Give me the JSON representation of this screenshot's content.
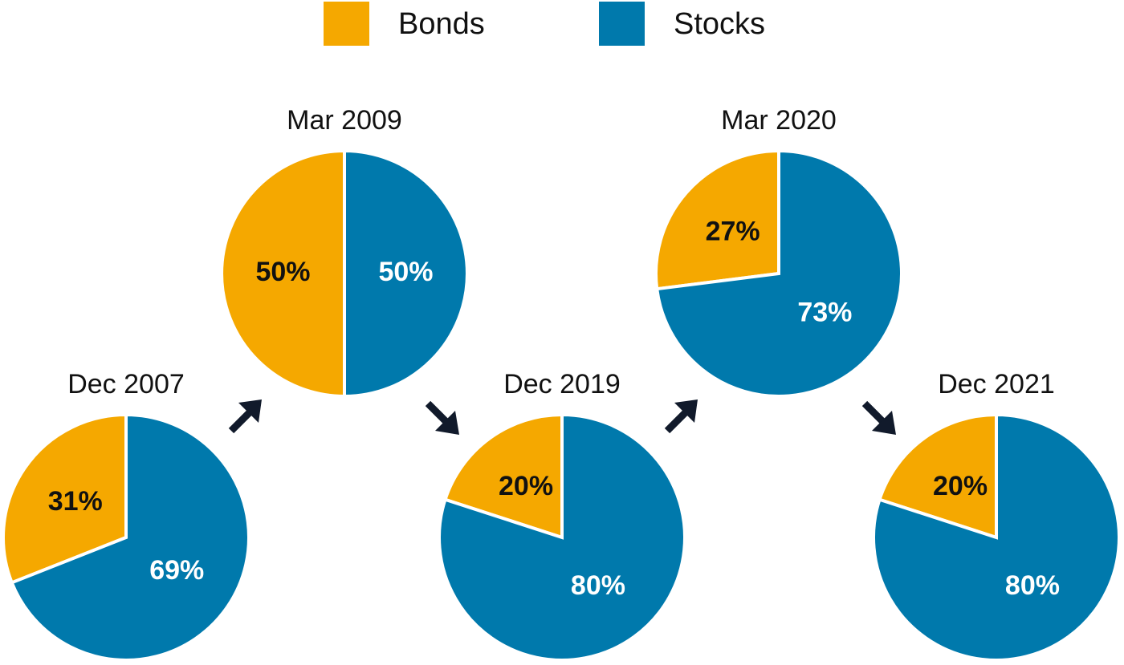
{
  "chart_data": {
    "type": "pie",
    "categories": [
      "Bonds",
      "Stocks"
    ],
    "colors": [
      "#f5a800",
      "#0079ac"
    ],
    "label_colors": [
      "#111111",
      "#ffffff"
    ],
    "pies": [
      {
        "title": "Dec 2007",
        "values": [
          31,
          69
        ],
        "value_labels": [
          "31%",
          "69%"
        ]
      },
      {
        "title": "Mar 2009",
        "values": [
          50,
          50
        ],
        "value_labels": [
          "50%",
          "50%"
        ]
      },
      {
        "title": "Dec 2019",
        "values": [
          20,
          80
        ],
        "value_labels": [
          "20%",
          "80%"
        ]
      },
      {
        "title": "Mar 2020",
        "values": [
          27,
          73
        ],
        "value_labels": [
          "27%",
          "73%"
        ]
      },
      {
        "title": "Dec 2021",
        "values": [
          20,
          80
        ],
        "value_labels": [
          "20%",
          "80%"
        ]
      }
    ]
  }
}
